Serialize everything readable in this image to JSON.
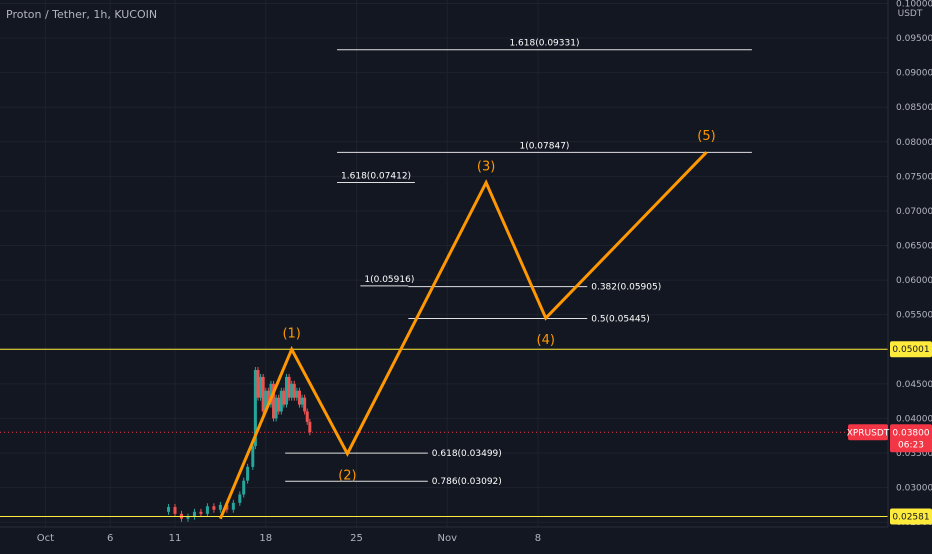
{
  "header": {
    "symbol_title": "Proton / Tether, 1h, KUCOIN"
  },
  "price_axis": {
    "unit": "USDT",
    "ticks": [
      {
        "label": "0.10000",
        "value": 0.1
      },
      {
        "label": "0.09500",
        "value": 0.095
      },
      {
        "label": "0.09000",
        "value": 0.09
      },
      {
        "label": "0.08500",
        "value": 0.085
      },
      {
        "label": "0.08000",
        "value": 0.08
      },
      {
        "label": "0.07500",
        "value": 0.075
      },
      {
        "label": "0.07000",
        "value": 0.07
      },
      {
        "label": "0.06500",
        "value": 0.065
      },
      {
        "label": "0.06000",
        "value": 0.06
      },
      {
        "label": "0.05500",
        "value": 0.055
      },
      {
        "label": "0.05000",
        "value": 0.05
      },
      {
        "label": "0.04500",
        "value": 0.045
      },
      {
        "label": "0.04000",
        "value": 0.04
      },
      {
        "label": "0.03500",
        "value": 0.035
      },
      {
        "label": "0.03000",
        "value": 0.03
      },
      {
        "label": "0.02500",
        "value": 0.025
      }
    ],
    "price_tags": [
      {
        "label": "0.05001",
        "value": 0.05001,
        "style": "horizontal-line"
      },
      {
        "label": "0.02581",
        "value": 0.02581,
        "style": "horizontal-line"
      },
      {
        "label": "0.03800",
        "value": 0.038,
        "style": "last-price",
        "symbol": "XPRUSDT",
        "countdown": "06:23"
      }
    ]
  },
  "time_axis": {
    "ticks": [
      {
        "label": "Oct",
        "day": 1
      },
      {
        "label": "6",
        "day": 6
      },
      {
        "label": "11",
        "day": 11
      },
      {
        "label": "18",
        "day": 18
      },
      {
        "label": "25",
        "day": 25
      },
      {
        "label": "Nov",
        "day": 32
      },
      {
        "label": "8",
        "day": 39
      }
    ]
  },
  "chart_data": {
    "type": "line",
    "title": "Proton / Tether, 1h, KUCOIN",
    "ylabel": "USDT",
    "x_unit": "day (1 = Oct 1)",
    "xlim": [
      -2.5,
      66
    ],
    "ylim": [
      0.0243,
      0.1005
    ],
    "log_scale": false,
    "grid": true,
    "horizontal_levels": [
      0.05001,
      0.02581
    ],
    "price_series": [
      {
        "day": 10.0,
        "price": 0.0265
      },
      {
        "day": 10.5,
        "price": 0.0272
      },
      {
        "day": 11.0,
        "price": 0.0262
      },
      {
        "day": 11.5,
        "price": 0.0255
      },
      {
        "day": 12.0,
        "price": 0.0258
      },
      {
        "day": 12.5,
        "price": 0.0265
      },
      {
        "day": 13.0,
        "price": 0.0262
      },
      {
        "day": 13.5,
        "price": 0.0273
      },
      {
        "day": 14.0,
        "price": 0.0268
      },
      {
        "day": 14.5,
        "price": 0.0275
      },
      {
        "day": 15.0,
        "price": 0.0268
      },
      {
        "day": 15.5,
        "price": 0.0278
      },
      {
        "day": 16.0,
        "price": 0.029
      },
      {
        "day": 16.3,
        "price": 0.031
      },
      {
        "day": 16.6,
        "price": 0.033
      },
      {
        "day": 17.0,
        "price": 0.036
      },
      {
        "day": 17.2,
        "price": 0.047
      },
      {
        "day": 17.4,
        "price": 0.043
      },
      {
        "day": 17.6,
        "price": 0.046
      },
      {
        "day": 17.8,
        "price": 0.041
      },
      {
        "day": 18.0,
        "price": 0.044
      },
      {
        "day": 18.2,
        "price": 0.042
      },
      {
        "day": 18.4,
        "price": 0.045
      },
      {
        "day": 18.6,
        "price": 0.04
      },
      {
        "day": 18.8,
        "price": 0.043
      },
      {
        "day": 19.0,
        "price": 0.041
      },
      {
        "day": 19.2,
        "price": 0.044
      },
      {
        "day": 19.4,
        "price": 0.042
      },
      {
        "day": 19.6,
        "price": 0.046
      },
      {
        "day": 19.8,
        "price": 0.043
      },
      {
        "day": 20.0,
        "price": 0.045
      },
      {
        "day": 20.2,
        "price": 0.043
      },
      {
        "day": 20.4,
        "price": 0.044
      },
      {
        "day": 20.6,
        "price": 0.042
      },
      {
        "day": 20.8,
        "price": 0.043
      },
      {
        "day": 21.0,
        "price": 0.041
      },
      {
        "day": 21.2,
        "price": 0.0395
      },
      {
        "day": 21.4,
        "price": 0.038
      }
    ],
    "wave_path": [
      {
        "label": "",
        "day": 14.5,
        "price": 0.0255
      },
      {
        "label": "(1)",
        "day": 20.0,
        "price": 0.05
      },
      {
        "label": "(2)",
        "day": 24.3,
        "price": 0.0349
      },
      {
        "label": "(3)",
        "day": 35.0,
        "price": 0.0741
      },
      {
        "label": "(4)",
        "day": 39.6,
        "price": 0.0545
      },
      {
        "label": "(5)",
        "day": 52.0,
        "price": 0.0785
      }
    ],
    "fib_levels": [
      {
        "label": "1.618(0.09331)",
        "price": 0.09331,
        "x_start": 23.5,
        "x_end": 55.5
      },
      {
        "label": "1(0.07847)",
        "price": 0.07847,
        "x_start": 23.5,
        "x_end": 55.5
      },
      {
        "label": "1.618(0.07412)",
        "price": 0.07412,
        "x_start": 23.5,
        "x_end": 29.5
      },
      {
        "label": "1(0.05916)",
        "price": 0.05916,
        "x_start": 25.3,
        "x_end": 29.0
      },
      {
        "label": "0.382(0.05905)",
        "price": 0.05905,
        "x_start": 29.0,
        "x_end": 42.8
      },
      {
        "label": "0.5(0.05445)",
        "price": 0.05445,
        "x_start": 29.0,
        "x_end": 42.8
      },
      {
        "label": "0.618(0.03499)",
        "price": 0.03499,
        "x_start": 19.5,
        "x_end": 30.5
      },
      {
        "label": "0.786(0.03092)",
        "price": 0.03092,
        "x_start": 19.5,
        "x_end": 30.5
      }
    ]
  },
  "colors": {
    "background": "#131722",
    "grid": "#1e222d",
    "axis_text": "#b2b5be",
    "wave": "#ff9800",
    "fib_line": "#e0e0e0",
    "fib_text": "#ffffff",
    "yellow_line": "#ffeb3b",
    "yellow_tag_text": "#131722",
    "red_tag": "#f23645",
    "candle_up": "#26a69a",
    "candle_down": "#ef5350",
    "current_price_line": "#f23645"
  }
}
